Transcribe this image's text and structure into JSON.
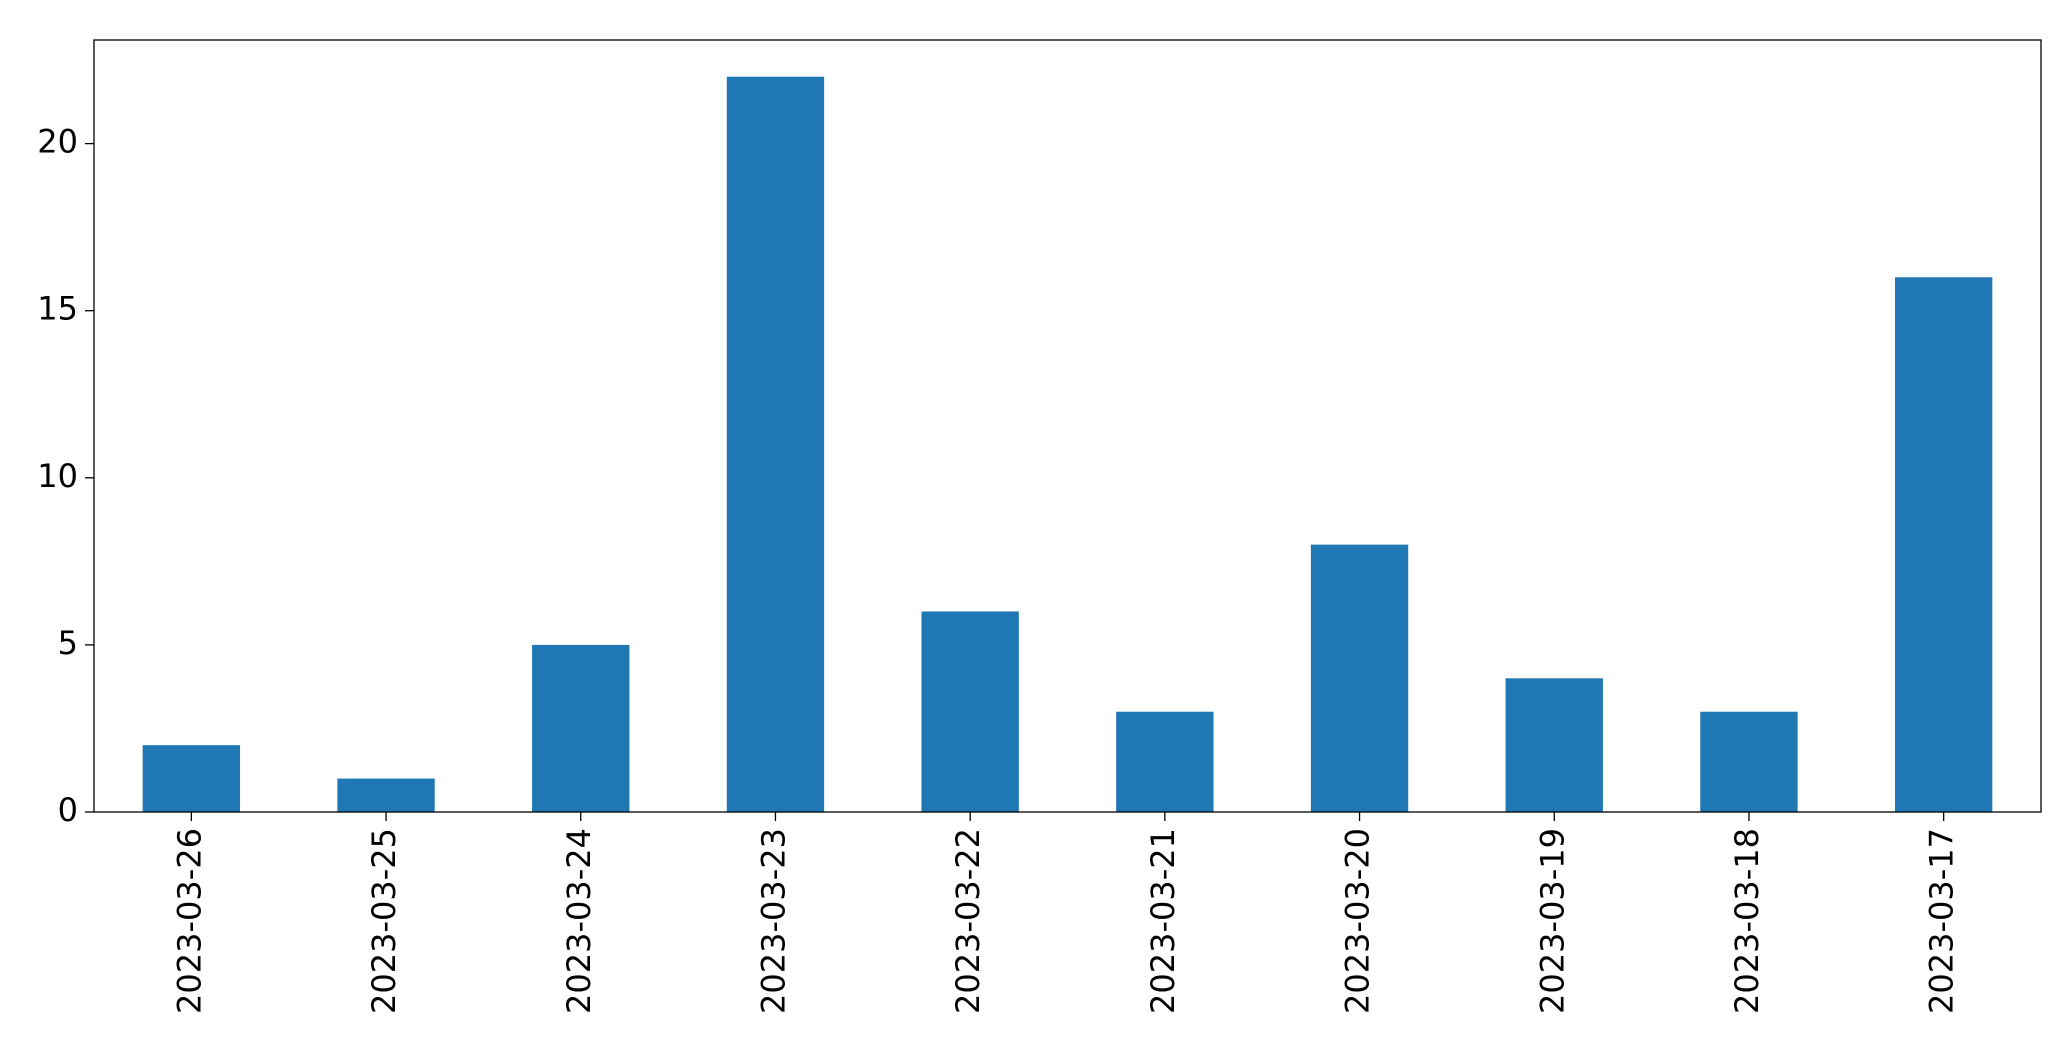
{
  "chart_data": {
    "type": "bar",
    "categories": [
      "2023-03-26",
      "2023-03-25",
      "2023-03-24",
      "2023-03-23",
      "2023-03-22",
      "2023-03-21",
      "2023-03-20",
      "2023-03-19",
      "2023-03-18",
      "2023-03-17"
    ],
    "values": [
      2,
      1,
      5,
      22,
      6,
      3,
      8,
      4,
      3,
      16
    ],
    "color": "#1f77b4",
    "ylim": [
      0,
      23.1
    ],
    "yticks": [
      0,
      5,
      10,
      15,
      20
    ],
    "grid": false
  }
}
